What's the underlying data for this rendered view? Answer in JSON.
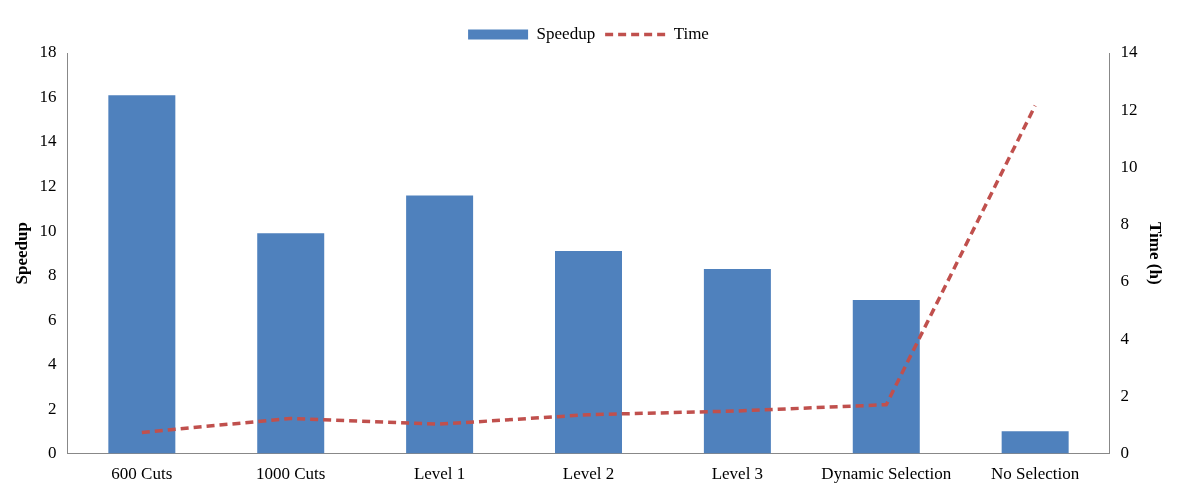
{
  "chart_data": {
    "type": "bar",
    "categories": [
      "600 Cuts",
      "1000 Cuts",
      "Level 1",
      "Level 2",
      "Level 3",
      "Dynamic Selection",
      "No Selection"
    ],
    "series": [
      {
        "name": "Speedup",
        "color": "#4f81bd",
        "values": [
          16.1,
          9.9,
          11.6,
          9.1,
          8.3,
          6.9,
          1.0
        ]
      },
      {
        "name": "Time",
        "type": "line",
        "axis": "y2",
        "color": "#c0504d",
        "line_style": "dashed",
        "marker": "none",
        "values": [
          0.74,
          1.23,
          1.03,
          1.36,
          1.49,
          1.71,
          12.16
        ]
      }
    ],
    "ylabel": "Speedup",
    "y2label": "Time (h)",
    "ylim": [
      0,
      18
    ],
    "yticks": [
      0,
      2,
      4,
      6,
      8,
      10,
      12,
      14,
      16,
      18
    ],
    "y2lim": [
      0,
      14
    ],
    "y2ticks": [
      0,
      2,
      4,
      6,
      8,
      10,
      12,
      14
    ],
    "grid": false,
    "legend": "top"
  }
}
